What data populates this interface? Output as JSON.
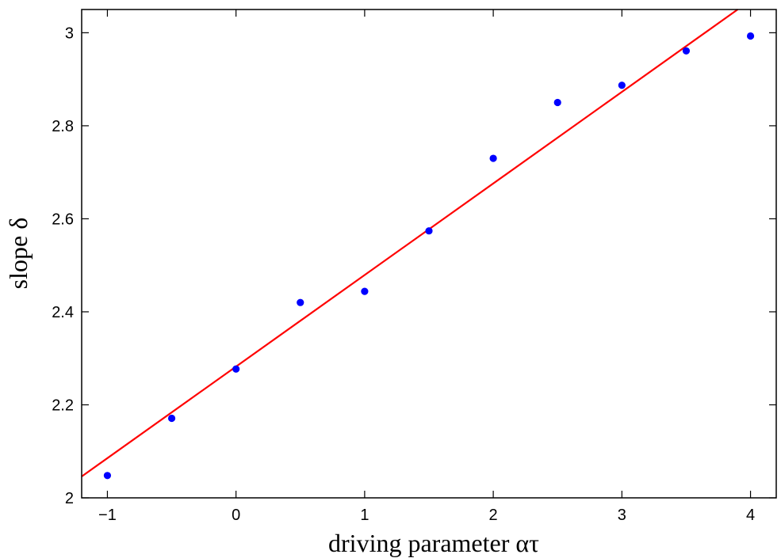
{
  "chart_data": {
    "type": "scatter",
    "title": "",
    "xlabel": "driving parameter ατ",
    "ylabel": "slope δ",
    "xlim": [
      -1.2,
      4.2
    ],
    "ylim": [
      2.0,
      3.05
    ],
    "xticks": [
      -1,
      0,
      1,
      2,
      3,
      4
    ],
    "xtick_labels": [
      "−1",
      "0",
      "1",
      "2",
      "3",
      "4"
    ],
    "yticks": [
      2.0,
      2.2,
      2.4,
      2.6,
      2.8,
      3.0
    ],
    "ytick_labels": [
      "2",
      "2.2",
      "2.4",
      "2.6",
      "2.8",
      "3"
    ],
    "grid": false,
    "series": [
      {
        "kind": "points",
        "color": "#0000ff",
        "x": [
          -1,
          -0.5,
          0,
          0.5,
          1,
          1.5,
          2,
          2.5,
          3,
          3.5,
          4
        ],
        "y": [
          2.048,
          2.171,
          2.277,
          2.42,
          2.444,
          2.574,
          2.73,
          2.85,
          2.887,
          2.961,
          2.993
        ]
      },
      {
        "kind": "fit-line",
        "color": "#ff0000",
        "x": [
          -1.2,
          3.9
        ],
        "y": [
          2.046,
          3.05
        ]
      }
    ]
  }
}
